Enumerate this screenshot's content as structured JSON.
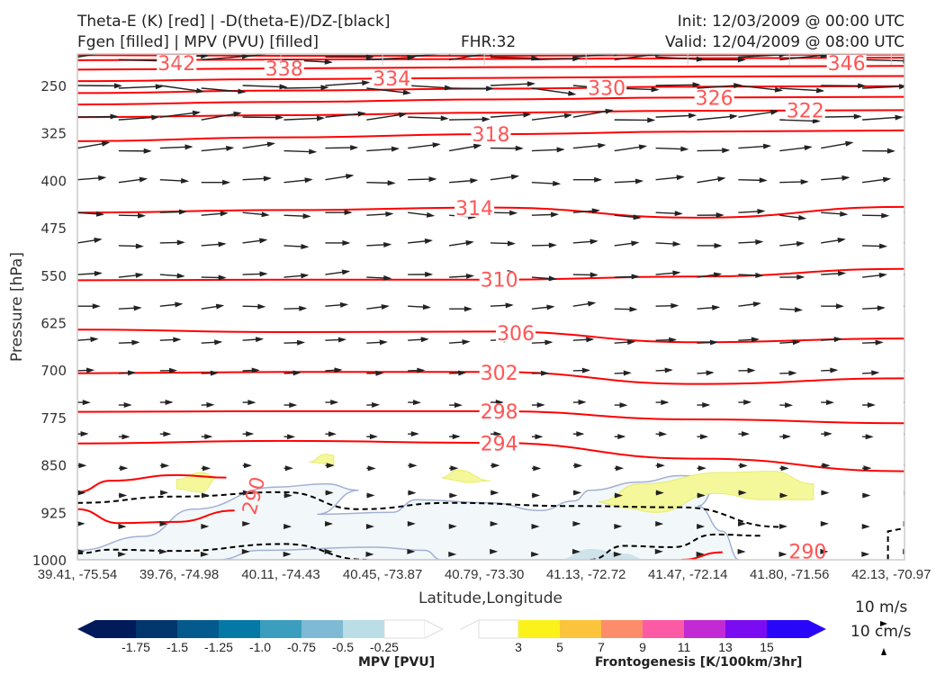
{
  "header": {
    "title_left_1": "Theta-E (K) [red] | -D(theta-E)/DZ-[black]",
    "title_left_2": "Fgen [filled] | MPV (PVU) [filled]",
    "fhr": "FHR:32",
    "init": "Init: 12/03/2009 @ 00:00 UTC",
    "valid": "Valid: 12/04/2009 @ 08:00 UTC"
  },
  "chart_data": {
    "type": "cross-section",
    "xlabel": "Latitude,Longitude",
    "ylabel": "Pressure [hPa]",
    "ylim": [
      1000,
      200
    ],
    "yticks": [
      250,
      325,
      400,
      475,
      550,
      625,
      700,
      775,
      850,
      925,
      1000
    ],
    "xticks": [
      "39.41, -75.54",
      "39.76, -74.98",
      "40.11, -74.43",
      "40.45, -73.87",
      "40.79, -73.30",
      "41.13, -72.72",
      "41.47, -72.14",
      "41.80, -71.56",
      "42.13, -70.97"
    ],
    "theta_e_x": [
      0,
      25,
      50,
      75,
      100
    ],
    "theta_e": [
      {
        "value": 346,
        "label": "346",
        "p": [
          202,
          203,
          203,
          202,
          201
        ],
        "label_x": 93
      },
      {
        "value": 342,
        "label": "342",
        "p": [
          210,
          209,
          208,
          207,
          206
        ],
        "label_x": 52
      },
      {
        "value": 338,
        "label": "338",
        "p": [
          225,
          223,
          221,
          220,
          219
        ],
        "label_x": 47
      },
      {
        "value": 334,
        "label": "334",
        "p": [
          243,
          240,
          238,
          236,
          235
        ],
        "label_x": 52
      },
      {
        "value": 330,
        "label": "330",
        "p": [
          262,
          258,
          255,
          252,
          251
        ],
        "label_x": 55
      },
      {
        "value": 326,
        "label": "326",
        "p": [
          280,
          276,
          272,
          269,
          268
        ],
        "label_x": 48
      },
      {
        "value": 322,
        "label": "322",
        "p": [
          300,
          297,
          293,
          290,
          289
        ],
        "label_x": 48
      },
      {
        "value": 318,
        "label": "318",
        "p": [
          338,
          332,
          327,
          323,
          321
        ],
        "label_x": 48
      },
      {
        "value": 314,
        "label": "314",
        "p": [
          451,
          447,
          443,
          459,
          442
        ],
        "label_x": 48
      },
      {
        "value": 310,
        "label": "310",
        "p": [
          558,
          557,
          557,
          552,
          540
        ],
        "label_x": 51
      },
      {
        "value": 306,
        "label": "306",
        "p": [
          636,
          640,
          639,
          656,
          650
        ],
        "label_x": 53
      },
      {
        "value": 302,
        "label": "302",
        "p": [
          705,
          703,
          703,
          722,
          713
        ],
        "label_x": 51
      },
      {
        "value": 298,
        "label": "298",
        "p": [
          766,
          765,
          765,
          778,
          784
        ],
        "label_x": 51
      },
      {
        "value": 294,
        "label": "294",
        "p": [
          816,
          812,
          815,
          840,
          860
        ],
        "label_x": 51
      }
    ],
    "theta_e_290": {
      "label": "290",
      "label_right": "290"
    },
    "winds": {
      "levels": [
        205,
        250,
        300,
        349,
        399,
        451,
        499,
        549,
        599,
        653,
        701,
        751,
        801,
        851,
        894,
        943,
        987
      ],
      "speeds": [
        22,
        20,
        18,
        14,
        12,
        11,
        10,
        10,
        9,
        8,
        6,
        4,
        3,
        2,
        1.5,
        1.2,
        1
      ],
      "dir_deg": [
        -3,
        2,
        -4,
        -4,
        -3,
        1,
        -3,
        -2,
        -3,
        -3,
        -2,
        0,
        0,
        0,
        0,
        0,
        0
      ]
    },
    "reference_vectors": [
      "10 m/s",
      "10 cm/s"
    ]
  },
  "colorbars": {
    "mpv": {
      "title": "MPV [PVU]",
      "ticks": [
        "-1.75",
        "-1.5",
        "-1.25",
        "-1.0",
        "-0.75",
        "-0.5",
        "-0.25"
      ],
      "colors": [
        "#011a5c",
        "#02366f",
        "#045a8d",
        "#0479a5",
        "#3b9ebf",
        "#7ebad3",
        "#badde6",
        "#ffffff"
      ]
    },
    "fgen": {
      "title": "Frontogenesis [K/100km/3hr]",
      "ticks": [
        "3",
        "5",
        "7",
        "9",
        "11",
        "13",
        "15"
      ],
      "colors": [
        "#ffffff",
        "#fbf21a",
        "#fbc43c",
        "#fd8d6a",
        "#fd5aa6",
        "#c22bd4",
        "#7b0cf2",
        "#2a06f8"
      ]
    }
  }
}
